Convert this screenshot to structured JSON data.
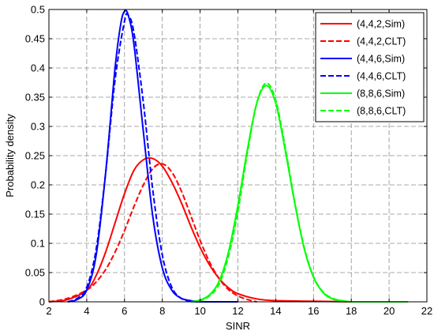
{
  "chart_data": {
    "type": "line",
    "title": "",
    "xlabel": "SINR",
    "ylabel": "Probability density",
    "xlim": [
      2,
      22
    ],
    "ylim": [
      0,
      0.5
    ],
    "xticks": [
      2,
      4,
      6,
      8,
      10,
      12,
      14,
      16,
      18,
      20,
      22
    ],
    "yticks": [
      0,
      0.05,
      0.1,
      0.15,
      0.2,
      0.25,
      0.3,
      0.35,
      0.4,
      0.45,
      0.5
    ],
    "grid": true,
    "legend_position": "top-right",
    "series": [
      {
        "name": "(4,4,2,Sim)",
        "color": "#ff0000",
        "dash": "solid",
        "x": [
          2.0,
          3.0,
          4.0,
          4.5,
          5.0,
          5.5,
          6.0,
          6.5,
          7.0,
          7.5,
          8.0,
          8.5,
          9.0,
          9.5,
          10.0,
          10.5,
          11.0,
          11.5,
          12.0,
          13.0,
          14.0,
          16.0,
          18.0,
          21.0
        ],
        "y": [
          0.0,
          0.004,
          0.02,
          0.045,
          0.085,
          0.135,
          0.185,
          0.225,
          0.243,
          0.245,
          0.232,
          0.205,
          0.17,
          0.13,
          0.093,
          0.063,
          0.04,
          0.024,
          0.014,
          0.005,
          0.002,
          0.001,
          0.0,
          0.0
        ]
      },
      {
        "name": "(4,4,2,CLT)",
        "color": "#ff0000",
        "dash": "dashed",
        "x": [
          2.0,
          3.0,
          4.0,
          4.5,
          5.0,
          5.5,
          6.0,
          6.5,
          7.0,
          7.5,
          8.0,
          8.5,
          9.0,
          9.5,
          10.0,
          10.5,
          11.0,
          11.5,
          12.0,
          12.5,
          13.0
        ],
        "y": [
          0.0,
          0.006,
          0.02,
          0.034,
          0.055,
          0.085,
          0.122,
          0.163,
          0.2,
          0.228,
          0.236,
          0.222,
          0.19,
          0.148,
          0.105,
          0.068,
          0.04,
          0.021,
          0.01,
          0.004,
          0.0
        ]
      },
      {
        "name": "(4,4,6,Sim)",
        "color": "#0000ff",
        "dash": "solid",
        "x": [
          3.0,
          3.5,
          4.0,
          4.5,
          5.0,
          5.5,
          5.8,
          6.0,
          6.2,
          6.5,
          7.0,
          7.5,
          8.0,
          8.5,
          9.0,
          9.5,
          10.0,
          11.0,
          12.0
        ],
        "y": [
          0.0,
          0.004,
          0.02,
          0.08,
          0.22,
          0.4,
          0.475,
          0.497,
          0.49,
          0.44,
          0.29,
          0.145,
          0.058,
          0.02,
          0.006,
          0.002,
          0.0,
          0.0,
          0.0
        ]
      },
      {
        "name": "(4,4,6,CLT)",
        "color": "#0000ff",
        "dash": "dashed",
        "x": [
          3.0,
          3.5,
          4.0,
          4.5,
          5.0,
          5.5,
          6.0,
          6.2,
          6.5,
          7.0,
          7.5,
          8.0,
          8.5,
          9.0,
          9.5,
          10.0
        ],
        "y": [
          0.0,
          0.006,
          0.025,
          0.09,
          0.22,
          0.38,
          0.48,
          0.49,
          0.46,
          0.34,
          0.19,
          0.08,
          0.025,
          0.006,
          0.001,
          0.0
        ]
      },
      {
        "name": "(8,8,6,Sim)",
        "color": "#00ff00",
        "dash": "solid",
        "x": [
          9.5,
          10.0,
          10.5,
          11.0,
          11.5,
          12.0,
          12.5,
          13.0,
          13.5,
          14.0,
          14.5,
          15.0,
          15.5,
          16.0,
          16.5,
          17.0,
          17.5,
          18.0,
          19.0,
          21.0
        ],
        "y": [
          0.0,
          0.003,
          0.012,
          0.035,
          0.085,
          0.165,
          0.26,
          0.34,
          0.37,
          0.34,
          0.26,
          0.17,
          0.092,
          0.042,
          0.016,
          0.005,
          0.002,
          0.0,
          0.0,
          0.0
        ]
      },
      {
        "name": "(8,8,6,CLT)",
        "color": "#00ff00",
        "dash": "dashed",
        "x": [
          9.5,
          10.0,
          10.5,
          11.0,
          11.5,
          12.0,
          12.5,
          13.0,
          13.5,
          14.0,
          14.5,
          15.0,
          15.5,
          16.0,
          16.5,
          17.0,
          17.5,
          18.0,
          19.0,
          21.0
        ],
        "y": [
          0.0,
          0.002,
          0.01,
          0.03,
          0.078,
          0.155,
          0.255,
          0.34,
          0.374,
          0.345,
          0.265,
          0.172,
          0.094,
          0.043,
          0.017,
          0.006,
          0.002,
          0.0,
          0.0,
          0.0
        ]
      }
    ]
  }
}
